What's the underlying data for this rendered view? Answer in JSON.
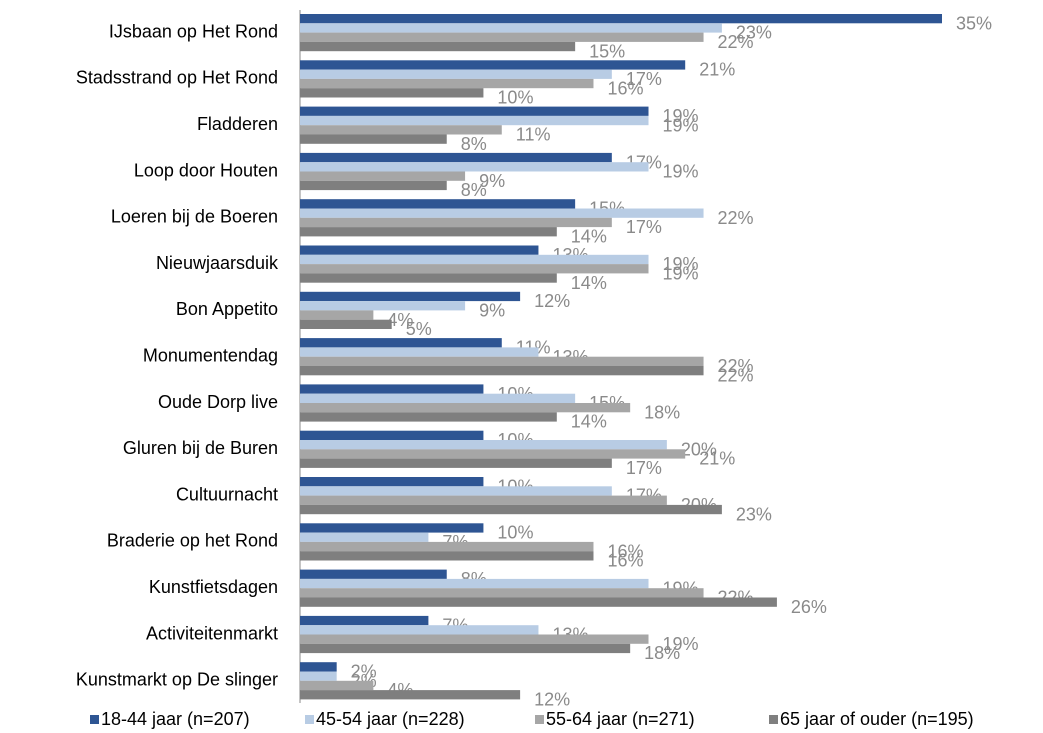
{
  "chart_data": {
    "type": "bar",
    "orientation": "horizontal",
    "categories": [
      "IJsbaan op Het Rond",
      "Stadsstrand op Het Rond",
      "Fladderen",
      "Loop door Houten",
      "Loeren bij de Boeren",
      "Nieuwjaarsduik",
      "Bon Appetito",
      "Monumentendag",
      "Oude Dorp live",
      "Gluren bij de Buren",
      "Cultuurnacht",
      "Braderie op het Rond",
      "Kunstfietsdagen",
      "Activiteitenmarkt",
      "Kunstmarkt op De slinger"
    ],
    "series": [
      {
        "name": "18-44 jaar (n=207)",
        "color": "#2e5593",
        "values": [
          35,
          21,
          19,
          17,
          15,
          13,
          12,
          11,
          10,
          10,
          10,
          10,
          8,
          7,
          2
        ],
        "value_labels": [
          "35%",
          "21%",
          "19%",
          "17%",
          "15%",
          "13%",
          "12%",
          "11%",
          "10%",
          "10%",
          "10%",
          "10%",
          "8%",
          "7%",
          "2%"
        ]
      },
      {
        "name": "45-54 jaar (n=228)",
        "color": "#b8cce4",
        "values": [
          23,
          17,
          19,
          19,
          22,
          19,
          9,
          13,
          15,
          20,
          17,
          7,
          19,
          13,
          2
        ],
        "value_labels": [
          "23%",
          "17%",
          "19%",
          "19%",
          "22%",
          "19%",
          "9%",
          "13%",
          "15%",
          "20%",
          "17%",
          "7%",
          "19%",
          "13%",
          "2%"
        ]
      },
      {
        "name": "55-64 jaar (n=271)",
        "color": "#a6a6a6",
        "values": [
          22,
          16,
          11,
          9,
          17,
          19,
          4,
          22,
          18,
          21,
          20,
          16,
          22,
          19,
          4
        ],
        "value_labels": [
          "22%",
          "16%",
          "11%",
          "9%",
          "17%",
          "19%",
          "4%",
          "22%",
          "18%",
          "21%",
          "20%",
          "16%",
          "22%",
          "19%",
          "4%"
        ]
      },
      {
        "name": "65 jaar of ouder (n=195)",
        "color": "#7f7f7f",
        "values": [
          15,
          10,
          8,
          8,
          14,
          14,
          5,
          22,
          14,
          17,
          23,
          16,
          26,
          18,
          12
        ],
        "value_labels": [
          "15%",
          "10%",
          "8%",
          "8%",
          "14%",
          "14%",
          "5%",
          "22%",
          "14%",
          "17%",
          "23%",
          "16%",
          "26%",
          "18%",
          "12%"
        ]
      }
    ]
  }
}
